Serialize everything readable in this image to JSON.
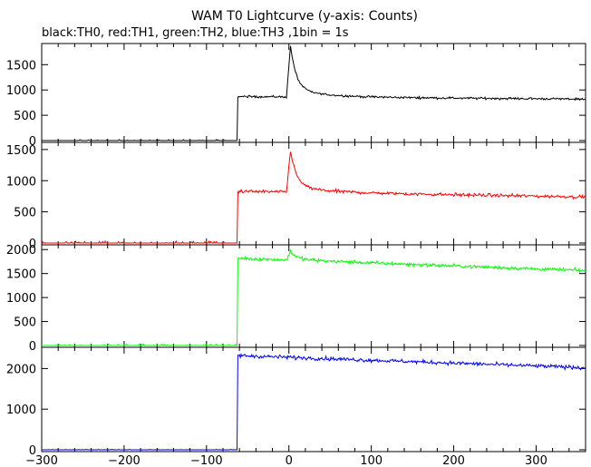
{
  "title": "WAM T0 Lightcurve (y-axis: Counts)",
  "subtitle": "black:TH0, red:TH1, green:TH2, blue:TH3 ,1bin = 1s",
  "chart_data": [
    {
      "type": "line",
      "series": [
        {
          "name": "TH0",
          "color": "#000000",
          "base": 0,
          "pre": 20,
          "level_start": 870,
          "level_end": 820,
          "peak": 1880,
          "peak_t": 2,
          "noise": 20
        }
      ],
      "xlim": [
        -300,
        360
      ],
      "ylim": [
        0,
        1900
      ],
      "yticks": [
        0,
        500,
        1000,
        1500
      ],
      "step_t": -62
    },
    {
      "type": "line",
      "series": [
        {
          "name": "TH1",
          "color": "#ff0000",
          "base": 0,
          "pre": 30,
          "level_start": 830,
          "level_end": 740,
          "peak": 1500,
          "peak_t": 2,
          "noise": 25
        }
      ],
      "xlim": [
        -300,
        360
      ],
      "ylim": [
        0,
        1600
      ],
      "yticks": [
        0,
        500,
        1000,
        1500
      ],
      "step_t": -62
    },
    {
      "type": "line",
      "series": [
        {
          "name": "TH2",
          "color": "#00ff00",
          "base": 0,
          "pre": 30,
          "level_start": 1820,
          "level_end": 1560,
          "peak": 2000,
          "peak_t": 2,
          "noise": 35
        }
      ],
      "xlim": [
        -300,
        360
      ],
      "ylim": [
        0,
        2080
      ],
      "yticks": [
        0,
        500,
        1000,
        1500,
        2000
      ],
      "step_t": -62
    },
    {
      "type": "line",
      "series": [
        {
          "name": "TH3",
          "color": "#0000ff",
          "base": 0,
          "pre": 10,
          "level_start": 2320,
          "level_end": 2020,
          "peak": 2320,
          "peak_t": 2,
          "noise": 45
        }
      ],
      "xlim": [
        -300,
        360
      ],
      "ylim": [
        0,
        2500
      ],
      "yticks": [
        0,
        1000,
        2000
      ],
      "step_t": -62
    }
  ],
  "xaxis": {
    "ticks": [
      -300,
      -200,
      -100,
      0,
      100,
      200,
      300
    ],
    "tick_labels": [
      "−300",
      "−200",
      "−100",
      "0",
      "100",
      "200",
      "300"
    ]
  }
}
